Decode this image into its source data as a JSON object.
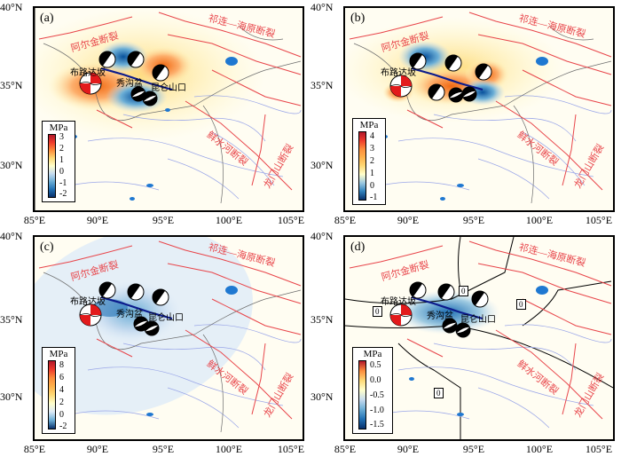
{
  "panels": [
    {
      "label": "(a)",
      "lat_ticks": [
        "40°N",
        "35°N",
        "30°N"
      ],
      "lon_ticks": [
        "85°E",
        "90°E",
        "95°E",
        "100°E",
        "105°E"
      ],
      "colorbar": {
        "unit": "MPa",
        "ticks": [
          "3",
          "2",
          "1",
          "0",
          "-1",
          "-2"
        ],
        "colors": [
          "#b2182b",
          "#ef3b2c",
          "#fd8d3c",
          "#fed976",
          "#ffffcc",
          "#c6dbef",
          "#6baed6",
          "#2171b5",
          "#08306b"
        ]
      }
    },
    {
      "label": "(b)",
      "lat_ticks": [
        "40°N",
        "35°N",
        "30°N"
      ],
      "lon_ticks": [
        "85°E",
        "90°E",
        "95°E",
        "100°E",
        "105°E"
      ],
      "colorbar": {
        "unit": "MPa",
        "ticks": [
          "4",
          "3",
          "2",
          "1",
          "0",
          "-1"
        ],
        "colors": [
          "#b2182b",
          "#ef3b2c",
          "#fd8d3c",
          "#feb24c",
          "#fed976",
          "#ffffcc",
          "#9ecae1",
          "#3182bd",
          "#08306b"
        ]
      }
    },
    {
      "label": "(c)",
      "lat_ticks": [
        "40°N",
        "35°N",
        "30°N"
      ],
      "lon_ticks": [
        "85°E",
        "90°E",
        "95°E",
        "100°E",
        "105°E"
      ],
      "colorbar": {
        "unit": "MPa",
        "ticks": [
          "8",
          "6",
          "4",
          "2",
          "0",
          "-2"
        ],
        "colors": [
          "#b2182b",
          "#ef3b2c",
          "#fd8d3c",
          "#feb24c",
          "#fed976",
          "#ffffcc",
          "#deebf7",
          "#6baed6",
          "#08306b"
        ]
      }
    },
    {
      "label": "(d)",
      "lat_ticks": [
        "40°N",
        "35°N",
        "30°N"
      ],
      "lon_ticks": [
        "85°E",
        "90°E",
        "95°E",
        "100°E",
        "105°E"
      ],
      "colorbar": {
        "unit": "MPa",
        "ticks": [
          "0.5",
          "0.0",
          "-0.5",
          "-1.0",
          "-1.5"
        ],
        "colors": [
          "#b2182b",
          "#fd8d3c",
          "#fed976",
          "#ffffcc",
          "#c6dbef",
          "#6baed6",
          "#2171b5",
          "#08306b"
        ]
      },
      "contour_labels": [
        "0",
        "0",
        "0",
        "0"
      ]
    }
  ],
  "faults": {
    "altyn_tagh": "阿尔金断裂",
    "qilian_haiyuan": "祁连—海原断裂",
    "xianshuihe": "鲜水河断裂",
    "longmenshan": "龙门山断裂"
  },
  "places": {
    "buluosidaban": "布路达坂",
    "xiugou": "秀沟盆",
    "kunlun_pass": "昆仑山口"
  },
  "colors": {
    "fault": "#e8454a",
    "river": "#9aa6e8",
    "lake": "#1f78d1",
    "rupture": "#0b1a8c"
  }
}
